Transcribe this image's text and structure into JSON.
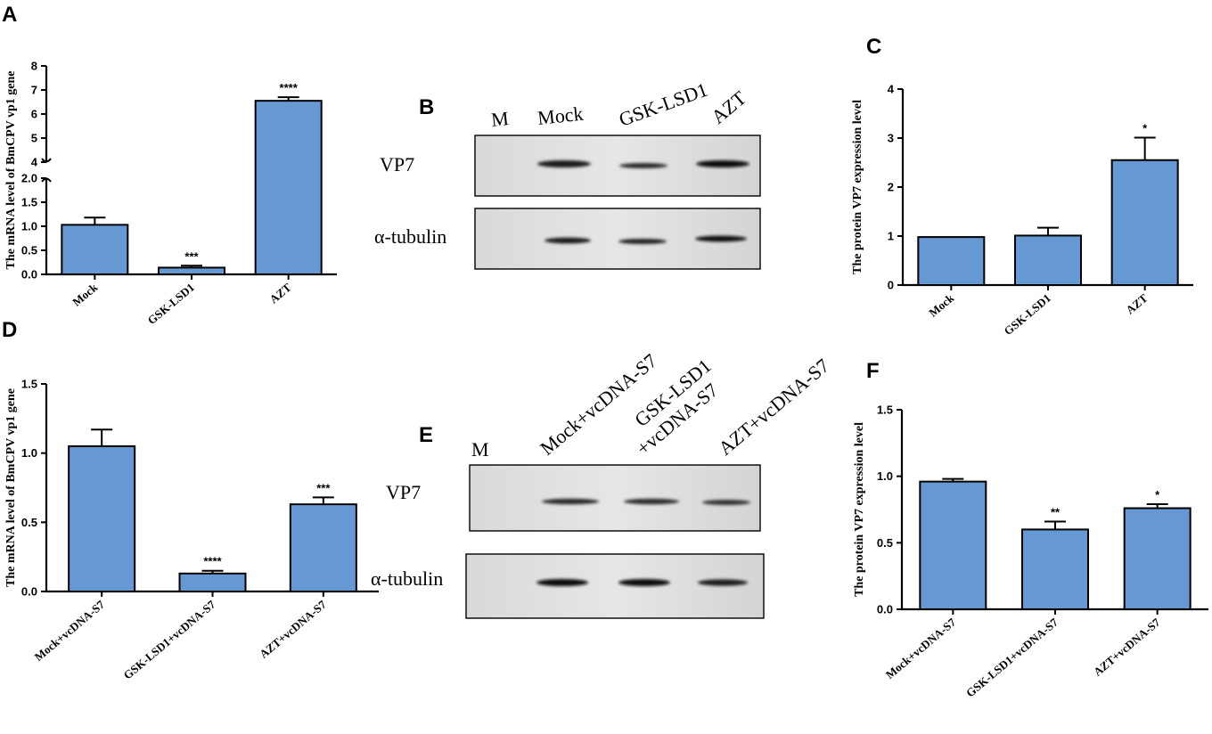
{
  "colors": {
    "bar": "#6699d3",
    "bar_edge": "#000000",
    "axis": "#000000"
  },
  "panels": {
    "A": "A",
    "B": "B",
    "C": "C",
    "D": "D",
    "E": "E",
    "F": "F"
  },
  "blot_B": {
    "lanes": [
      "M",
      "Mock",
      "GSK-LSD1",
      "AZT"
    ],
    "rows": [
      "VP7",
      "α-tubulin"
    ]
  },
  "blot_E": {
    "lanes": [
      "M",
      "Mock+vcDNA-S7",
      "GSK-LSD1",
      "+vcDNA-S7",
      "AZT+vcDNA-S7"
    ],
    "rows": [
      "VP7",
      "α-tubulin"
    ]
  },
  "chart_data": [
    {
      "panel": "A",
      "type": "bar",
      "ylabel": "The mRNA level of BmCPV vp1 gene",
      "categories": [
        "Mock",
        "GSK-LSD1",
        "AZT"
      ],
      "values": [
        1.03,
        0.14,
        6.55
      ],
      "errors": [
        0.15,
        0.04,
        0.15
      ],
      "significance": [
        "",
        "***",
        "****"
      ],
      "axis_break": true,
      "lower_ylim": [
        0,
        2.0
      ],
      "lower_ticks": [
        "0.0",
        "0.5",
        "1.0",
        "1.5",
        "2.0"
      ],
      "upper_ylim": [
        4,
        8
      ],
      "upper_ticks": [
        "4",
        "5",
        "6",
        "7",
        "8"
      ]
    },
    {
      "panel": "C",
      "type": "bar",
      "ylabel": "The protein VP7 expression level",
      "categories": [
        "Mock",
        "GSK-LSD1",
        "AZT"
      ],
      "values": [
        0.98,
        1.01,
        2.55
      ],
      "errors": [
        0,
        0.16,
        0.46
      ],
      "significance": [
        "",
        "",
        "*"
      ],
      "ylim": [
        0,
        4
      ],
      "ticks": [
        "0",
        "1",
        "2",
        "3",
        "4"
      ]
    },
    {
      "panel": "D",
      "type": "bar",
      "ylabel": "The mRNA level of BmCPV vp1 gene",
      "categories": [
        "Mock+vcDNA-S7",
        "GSK-LSD1+vcDNA-S7",
        "AZT+vcDNA-S7"
      ],
      "values": [
        1.05,
        0.13,
        0.63
      ],
      "errors": [
        0.12,
        0.02,
        0.05
      ],
      "significance": [
        "",
        "****",
        "***"
      ],
      "ylim": [
        0,
        1.5
      ],
      "ticks": [
        "0.0",
        "0.5",
        "1.0",
        "1.5"
      ]
    },
    {
      "panel": "F",
      "type": "bar",
      "ylabel": "The protein VP7 expression level",
      "categories": [
        "Mock+vcDNA-S7",
        "GSK-LSD1+vcDNA-S7",
        "AZT+vcDNA-S7"
      ],
      "values": [
        0.96,
        0.6,
        0.76
      ],
      "errors": [
        0.02,
        0.06,
        0.03
      ],
      "significance": [
        "",
        "**",
        "*"
      ],
      "ylim": [
        0,
        1.5
      ],
      "ticks": [
        "0.0",
        "0.5",
        "1.0",
        "1.5"
      ]
    }
  ]
}
